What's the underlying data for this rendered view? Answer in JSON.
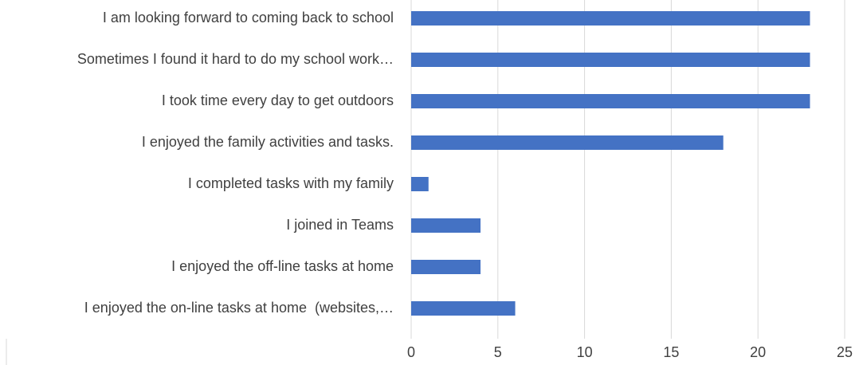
{
  "chart_data": {
    "type": "bar",
    "orientation": "horizontal",
    "categories": [
      "I am looking forward to coming back to school",
      "Sometimes I found it hard to do my school work…",
      "I took time every day to get outdoors",
      "I enjoyed the family activities and tasks.",
      "I completed tasks with my family",
      "I joined in Teams",
      "I enjoyed the off-line tasks at home",
      "I enjoyed the on-line tasks at home  (websites,…"
    ],
    "values": [
      23,
      23,
      23,
      18,
      1,
      4,
      4,
      6
    ],
    "color": "#4472c4",
    "xlim": [
      0,
      25
    ],
    "xticks": [
      0,
      5,
      10,
      15,
      20,
      25
    ],
    "grid": true
  }
}
